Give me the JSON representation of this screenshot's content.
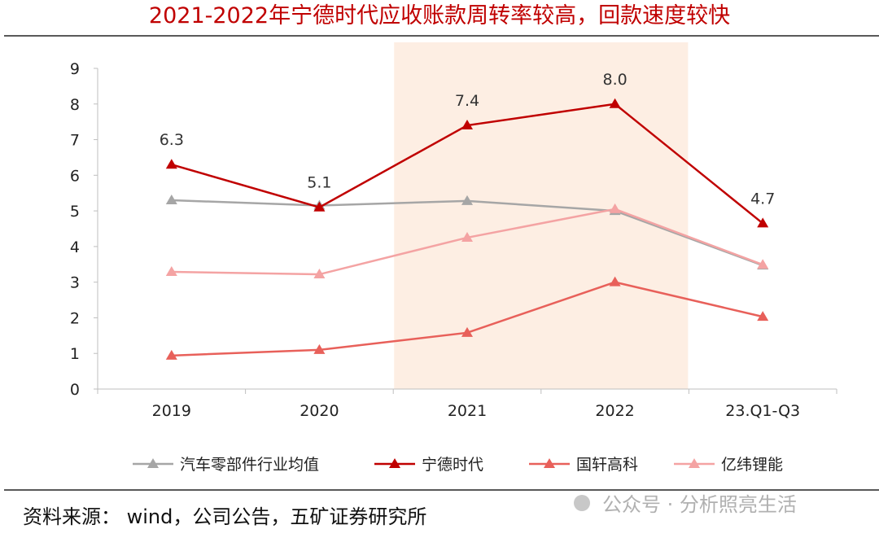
{
  "title": "2021-2022年宁德时代应收账款周转率较高，回款速度较快",
  "source": "资料来源： wind，公司公告，五矿证券研究所",
  "watermark": "公众号 · 分析照亮生活",
  "chart_data": {
    "type": "line",
    "title": "2021-2022年宁德时代应收账款周转率较高，回款速度较快",
    "categories": [
      "2019",
      "2020",
      "2021",
      "2022",
      "23.Q1-Q3"
    ],
    "ylim": [
      0,
      9
    ],
    "yticks": [
      "0",
      "1",
      "2",
      "3",
      "4",
      "5",
      "6",
      "7",
      "8",
      "9"
    ],
    "highlight_categories": [
      "2021",
      "2022"
    ],
    "legend_position": "bottom",
    "series": [
      {
        "name": "汽车零部件行业均值",
        "color": "#a6a6a6",
        "values": [
          5.3,
          5.15,
          5.28,
          5.0,
          3.47
        ]
      },
      {
        "name": "宁德时代",
        "color": "#c00000",
        "values": [
          6.3,
          5.1,
          7.4,
          8.0,
          4.65
        ],
        "labels": [
          "6.3",
          "5.1",
          "7.4",
          "8.0",
          "4.7"
        ]
      },
      {
        "name": "国轩高科",
        "color": "#e8605a",
        "values": [
          0.94,
          1.1,
          1.58,
          3.0,
          2.03
        ]
      },
      {
        "name": "亿纬锂能",
        "color": "#f4a3a3",
        "values": [
          3.29,
          3.22,
          4.25,
          5.05,
          3.49
        ]
      }
    ]
  }
}
